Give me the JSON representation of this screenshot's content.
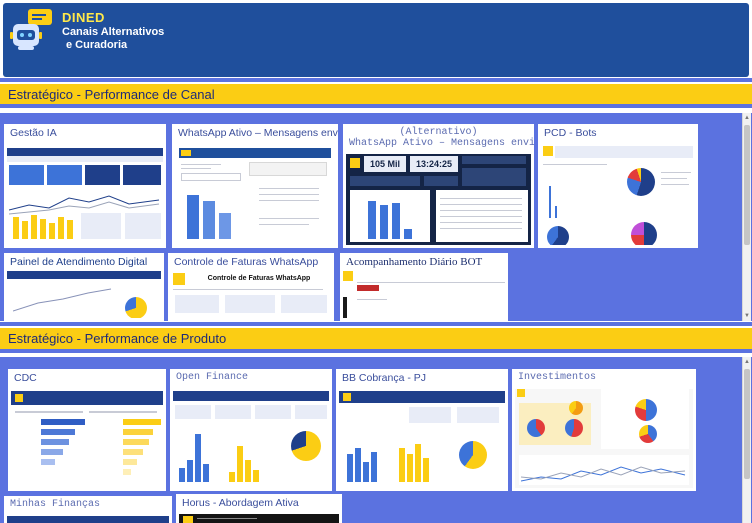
{
  "header": {
    "title": "DINED",
    "subtitle_line1": "Canais Alternativos",
    "subtitle_line2": "e Curadoria"
  },
  "sections": [
    {
      "label": "Estratégico - Performance de Canal"
    },
    {
      "label": "Estratégico - Performance de Produto"
    }
  ],
  "canal_cards": [
    {
      "title": "Gestão IA"
    },
    {
      "title": "WhatsApp Ativo – Mensagens enviadas"
    },
    {
      "title_line1": "(Alternativo)",
      "title_line2": "WhatsApp Ativo – Mensagens enviadas",
      "kpi1": "105 Mil",
      "kpi2": "13:24:25"
    },
    {
      "title": "PCD - Bots"
    },
    {
      "title": "Painel de Atendimento Digital"
    },
    {
      "title": "Controle de Faturas WhatsApp",
      "inner_title": "Controle de Faturas WhatsApp"
    },
    {
      "title": "Acompanhamento Diário BOT"
    }
  ],
  "produto_cards": [
    {
      "title": "CDC"
    },
    {
      "title": "Open Finance"
    },
    {
      "title": "BB Cobrança - PJ"
    },
    {
      "title": "Investimentos"
    },
    {
      "title": "Minhas Finanças"
    },
    {
      "title": "Horus - Abordagem Ativa"
    }
  ],
  "colors": {
    "header_bg": "#1f4f9c",
    "brand_yellow": "#ffe94a",
    "section_yellow": "#fbcd14",
    "panel_blue": "#5b72e0",
    "card_title_blue": "#3a4e9c"
  }
}
